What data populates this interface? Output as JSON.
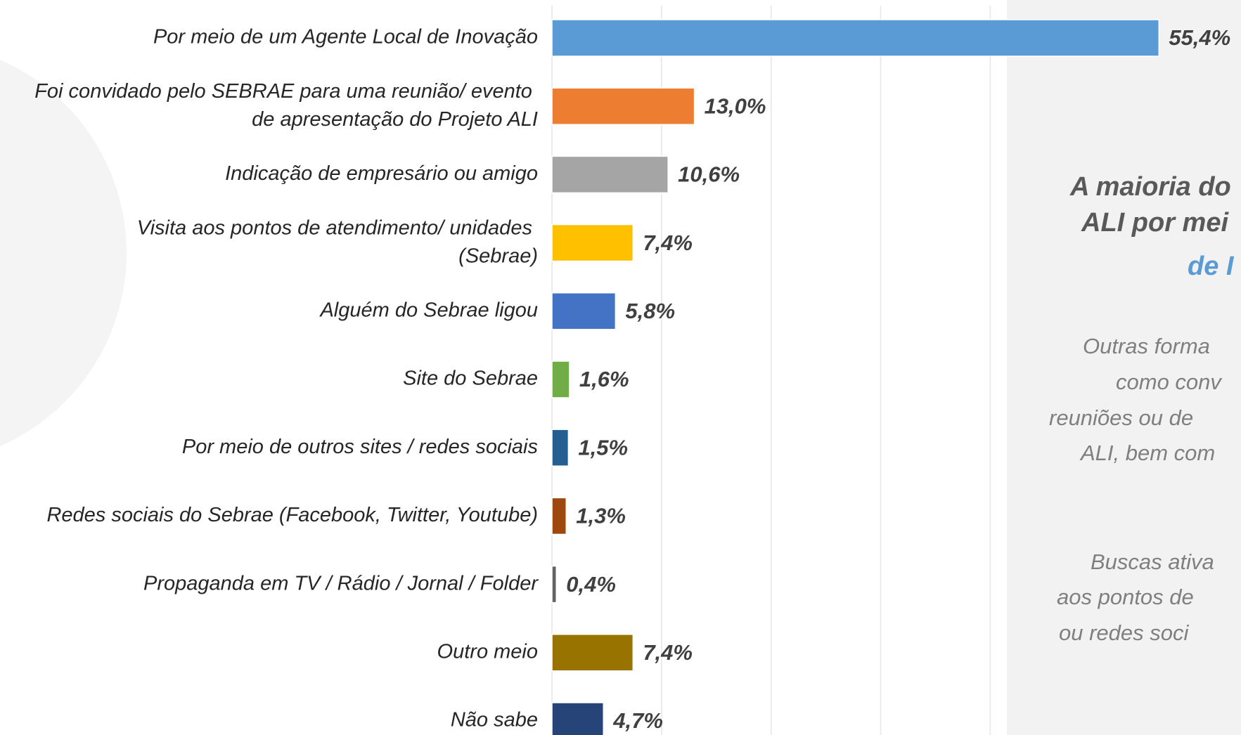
{
  "chart_data": {
    "type": "barh",
    "categories": [
      "Por meio de um Agente Local de Inovação",
      "Foi convidado pelo SEBRAE para uma reunião/ evento\nde apresentação do Projeto ALI",
      "Indicação de empresário ou amigo",
      "Visita aos pontos de atendimento/ unidades\n(Sebrae)",
      "Alguém do Sebrae ligou",
      "Site do Sebrae",
      "Por meio de outros sites / redes sociais",
      "Redes sociais do Sebrae  (Facebook, Twitter, Youtube)",
      "Propaganda em TV / Rádio / Jornal / Folder",
      "Outro meio",
      "Não sabe"
    ],
    "values": [
      55.4,
      13.0,
      10.6,
      7.4,
      5.8,
      1.6,
      1.5,
      1.3,
      0.4,
      7.4,
      4.7
    ],
    "value_labels": [
      "55,4%",
      "13,0%",
      "10,6%",
      "7,4%",
      "5,8%",
      "1,6%",
      "1,5%",
      "1,3%",
      "0,4%",
      "7,4%",
      "4,7%"
    ],
    "colors": [
      "#5b9bd5",
      "#ed7d31",
      "#a5a5a5",
      "#ffc000",
      "#4472c4",
      "#70ad47",
      "#255e91",
      "#9e480e",
      "#636363",
      "#997300",
      "#264478"
    ],
    "xlim": [
      0,
      60
    ],
    "xticks": [
      0,
      10,
      20,
      30,
      40,
      50
    ],
    "grid": true,
    "annotations": [
      {
        "lines": [
          "A maioria do",
          "ALI por mei"
        ],
        "highlight": "de I"
      },
      {
        "lines": [
          "Outras forma",
          "como conv",
          "reuniões ou de",
          "ALI, bem com"
        ]
      },
      {
        "lines": [
          "Buscas ativa",
          "aos pontos de",
          "ou redes soci"
        ]
      }
    ]
  }
}
